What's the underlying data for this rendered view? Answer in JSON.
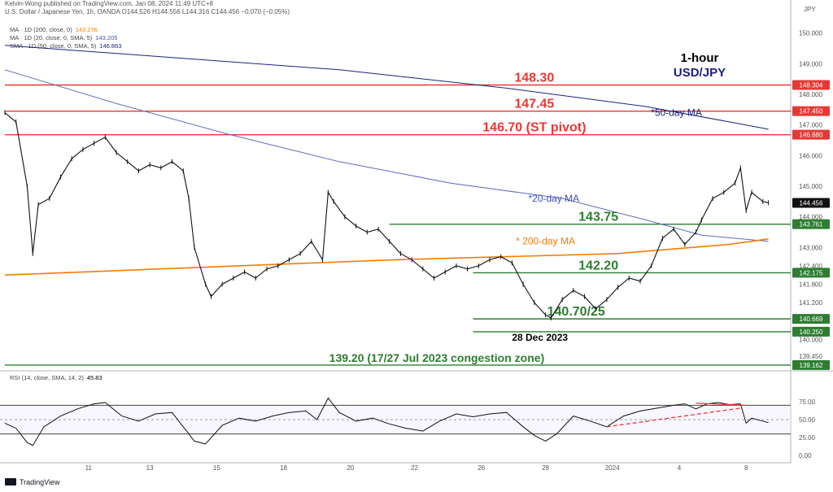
{
  "publisher": "Kelvin-Wong published on TradingView.com, Jan 08, 2024 11:49 UTC+8",
  "symbol_line": "U.S. Dollar / Japanese Yen, 1h, OANDA  O144.526 H144.556 L144.316 C144.456 −0.070 (−0.05%)",
  "indicators": [
    {
      "label": "MA · 1D (200, close, 0)",
      "value": "143.276",
      "color": "#f57c00"
    },
    {
      "label": "MA · 1D (20, close, 0, SMA, 5)",
      "value": "143.205",
      "color": "#3f51b5"
    },
    {
      "label": "SMA · 1D (50, close, 0, SMA, 5)",
      "value": "146.863",
      "color": "#1a237e"
    }
  ],
  "rsi_label": "RSI (14, close, SMA, 14, 2)",
  "rsi_value": "45.83",
  "brand": "TradingView",
  "chart_data": {
    "type": "line",
    "title": "1-hour",
    "subtitle": "USD/JPY",
    "currency": "JPY",
    "price_range": [
      139.0,
      150.6
    ],
    "price_ticks": [
      "150.000",
      "149.000",
      "148.000",
      "147.000",
      "146.000",
      "145.000",
      "144.000",
      "143.000",
      "142.400",
      "141.800",
      "141.200",
      "140.600",
      "140.000",
      "139.450"
    ],
    "x_ticks": [
      "11",
      "13",
      "15",
      "18",
      "20",
      "22",
      "26",
      "28",
      "2024",
      "4",
      "8"
    ],
    "x_tick_idx": [
      30,
      52,
      76,
      100,
      124,
      147,
      171,
      194,
      218,
      242,
      266
    ],
    "candles": [
      {
        "i": 0,
        "c": 147.4
      },
      {
        "i": 4,
        "c": 147.1
      },
      {
        "i": 8,
        "c": 145.0
      },
      {
        "i": 10,
        "c": 142.8
      },
      {
        "i": 12,
        "c": 144.4
      },
      {
        "i": 16,
        "c": 144.6
      },
      {
        "i": 20,
        "c": 145.3
      },
      {
        "i": 24,
        "c": 145.9
      },
      {
        "i": 28,
        "c": 146.2
      },
      {
        "i": 32,
        "c": 146.4
      },
      {
        "i": 36,
        "c": 146.6
      },
      {
        "i": 40,
        "c": 146.1
      },
      {
        "i": 44,
        "c": 145.8
      },
      {
        "i": 48,
        "c": 145.5
      },
      {
        "i": 52,
        "c": 145.7
      },
      {
        "i": 56,
        "c": 145.6
      },
      {
        "i": 60,
        "c": 145.8
      },
      {
        "i": 64,
        "c": 145.5
      },
      {
        "i": 66,
        "c": 144.6
      },
      {
        "i": 68,
        "c": 143.0
      },
      {
        "i": 72,
        "c": 141.8
      },
      {
        "i": 74,
        "c": 141.4
      },
      {
        "i": 78,
        "c": 141.8
      },
      {
        "i": 82,
        "c": 142.0
      },
      {
        "i": 86,
        "c": 142.2
      },
      {
        "i": 90,
        "c": 142.0
      },
      {
        "i": 94,
        "c": 142.3
      },
      {
        "i": 98,
        "c": 142.4
      },
      {
        "i": 102,
        "c": 142.6
      },
      {
        "i": 106,
        "c": 142.8
      },
      {
        "i": 110,
        "c": 143.2
      },
      {
        "i": 114,
        "c": 142.6
      },
      {
        "i": 116,
        "c": 144.8
      },
      {
        "i": 118,
        "c": 144.5
      },
      {
        "i": 122,
        "c": 144.0
      },
      {
        "i": 126,
        "c": 143.7
      },
      {
        "i": 130,
        "c": 143.5
      },
      {
        "i": 134,
        "c": 143.6
      },
      {
        "i": 138,
        "c": 143.2
      },
      {
        "i": 142,
        "c": 142.8
      },
      {
        "i": 146,
        "c": 142.6
      },
      {
        "i": 150,
        "c": 142.3
      },
      {
        "i": 154,
        "c": 142.0
      },
      {
        "i": 158,
        "c": 142.2
      },
      {
        "i": 162,
        "c": 142.4
      },
      {
        "i": 166,
        "c": 142.3
      },
      {
        "i": 170,
        "c": 142.4
      },
      {
        "i": 174,
        "c": 142.6
      },
      {
        "i": 178,
        "c": 142.7
      },
      {
        "i": 182,
        "c": 142.5
      },
      {
        "i": 186,
        "c": 141.8
      },
      {
        "i": 190,
        "c": 141.2
      },
      {
        "i": 194,
        "c": 140.8
      },
      {
        "i": 196,
        "c": 140.7
      },
      {
        "i": 200,
        "c": 141.3
      },
      {
        "i": 204,
        "c": 141.6
      },
      {
        "i": 208,
        "c": 141.4
      },
      {
        "i": 212,
        "c": 141.0
      },
      {
        "i": 216,
        "c": 141.3
      },
      {
        "i": 220,
        "c": 141.7
      },
      {
        "i": 224,
        "c": 142.0
      },
      {
        "i": 228,
        "c": 141.9
      },
      {
        "i": 232,
        "c": 142.4
      },
      {
        "i": 236,
        "c": 143.3
      },
      {
        "i": 240,
        "c": 143.6
      },
      {
        "i": 244,
        "c": 143.1
      },
      {
        "i": 248,
        "c": 143.5
      },
      {
        "i": 250,
        "c": 143.9
      },
      {
        "i": 254,
        "c": 144.6
      },
      {
        "i": 258,
        "c": 144.8
      },
      {
        "i": 262,
        "c": 145.1
      },
      {
        "i": 264,
        "c": 145.6
      },
      {
        "i": 266,
        "c": 144.2
      },
      {
        "i": 268,
        "c": 144.8
      },
      {
        "i": 272,
        "c": 144.5
      },
      {
        "i": 274,
        "c": 144.46
      }
    ],
    "ma50": [
      {
        "i": 0,
        "v": 149.6
      },
      {
        "i": 60,
        "v": 149.2
      },
      {
        "i": 120,
        "v": 148.8
      },
      {
        "i": 180,
        "v": 148.2
      },
      {
        "i": 230,
        "v": 147.6
      },
      {
        "i": 260,
        "v": 147.1
      },
      {
        "i": 274,
        "v": 146.86
      }
    ],
    "ma20": [
      {
        "i": 0,
        "v": 148.8
      },
      {
        "i": 40,
        "v": 147.7
      },
      {
        "i": 80,
        "v": 146.7
      },
      {
        "i": 120,
        "v": 145.8
      },
      {
        "i": 160,
        "v": 145.1
      },
      {
        "i": 200,
        "v": 144.6
      },
      {
        "i": 230,
        "v": 143.9
      },
      {
        "i": 250,
        "v": 143.4
      },
      {
        "i": 274,
        "v": 143.2
      }
    ],
    "ma200": [
      {
        "i": 0,
        "v": 142.1
      },
      {
        "i": 140,
        "v": 142.6
      },
      {
        "i": 220,
        "v": 142.8
      },
      {
        "i": 260,
        "v": 143.1
      },
      {
        "i": 274,
        "v": 143.28
      }
    ],
    "levels": [
      {
        "label": "148.30",
        "price": 148.304,
        "tag": "148.304",
        "color": "#e53935",
        "i_from": 0,
        "i_to": 282,
        "text_i": 190,
        "type": "resistance"
      },
      {
        "label": "147.45",
        "price": 147.45,
        "tag": "147.450",
        "color": "#e53935",
        "i_from": 0,
        "i_to": 282,
        "text_i": 190,
        "type": "resistance"
      },
      {
        "label": "146.70 (ST pivot)",
        "price": 146.68,
        "tag": "146.680",
        "color": "#e53935",
        "i_from": 0,
        "i_to": 282,
        "text_i": 190,
        "type": "pivot"
      },
      {
        "label": "143.75",
        "price": 143.761,
        "tag": "143.761",
        "color": "#2e7d32",
        "i_from": 138,
        "i_to": 282,
        "text_i": 213,
        "type": "support"
      },
      {
        "label": "142.20",
        "price": 142.175,
        "tag": "142.175",
        "color": "#2e7d32",
        "i_from": 168,
        "i_to": 282,
        "text_i": 213,
        "type": "support"
      },
      {
        "label": "140.70/25",
        "price": 140.669,
        "tag": "140.669",
        "color": "#2e7d32",
        "i_from": 168,
        "i_to": 282,
        "text_i": 205,
        "type": "support"
      },
      {
        "label": "",
        "price": 140.25,
        "tag": "140.250",
        "color": "#2e7d32",
        "i_from": 168,
        "i_to": 282,
        "text_i": 0,
        "type": "support"
      },
      {
        "label": "139.20 (17/27 Jul 2023 congestion zone)",
        "price": 139.162,
        "tag": "139.162",
        "color": "#2e7d32",
        "i_from": 0,
        "i_to": 282,
        "text_i": 155,
        "type": "support"
      }
    ],
    "last_price_tag": "144.456",
    "annotations": [
      {
        "text": "*50-day MA",
        "color": "#1a237e",
        "i": 241,
        "price": 147.3
      },
      {
        "text": "*20-day MA",
        "color": "#3f51b5",
        "i": 197,
        "price": 144.5
      },
      {
        "text": "* 200-day MA",
        "color": "#f57c00",
        "i": 194,
        "price": 143.1
      },
      {
        "text": "28 Dec 2023",
        "color": "#000000",
        "i": 192,
        "price": 139.95
      }
    ],
    "rsi": {
      "range": [
        0,
        100
      ],
      "ticks": [
        "75.00",
        "50.00",
        "25.00",
        "0.00"
      ],
      "bands": [
        70,
        50,
        30
      ],
      "values": [
        {
          "i": 0,
          "v": 45
        },
        {
          "i": 4,
          "v": 38
        },
        {
          "i": 8,
          "v": 18
        },
        {
          "i": 10,
          "v": 14
        },
        {
          "i": 14,
          "v": 40
        },
        {
          "i": 20,
          "v": 55
        },
        {
          "i": 26,
          "v": 65
        },
        {
          "i": 32,
          "v": 72
        },
        {
          "i": 36,
          "v": 74
        },
        {
          "i": 42,
          "v": 55
        },
        {
          "i": 48,
          "v": 48
        },
        {
          "i": 54,
          "v": 58
        },
        {
          "i": 60,
          "v": 60
        },
        {
          "i": 66,
          "v": 30
        },
        {
          "i": 68,
          "v": 20
        },
        {
          "i": 72,
          "v": 16
        },
        {
          "i": 78,
          "v": 42
        },
        {
          "i": 84,
          "v": 52
        },
        {
          "i": 90,
          "v": 48
        },
        {
          "i": 96,
          "v": 55
        },
        {
          "i": 102,
          "v": 60
        },
        {
          "i": 108,
          "v": 62
        },
        {
          "i": 112,
          "v": 50
        },
        {
          "i": 116,
          "v": 80
        },
        {
          "i": 120,
          "v": 60
        },
        {
          "i": 126,
          "v": 48
        },
        {
          "i": 132,
          "v": 52
        },
        {
          "i": 138,
          "v": 44
        },
        {
          "i": 144,
          "v": 38
        },
        {
          "i": 150,
          "v": 34
        },
        {
          "i": 156,
          "v": 48
        },
        {
          "i": 162,
          "v": 58
        },
        {
          "i": 168,
          "v": 54
        },
        {
          "i": 174,
          "v": 58
        },
        {
          "i": 180,
          "v": 60
        },
        {
          "i": 186,
          "v": 40
        },
        {
          "i": 190,
          "v": 28
        },
        {
          "i": 194,
          "v": 20
        },
        {
          "i": 198,
          "v": 30
        },
        {
          "i": 204,
          "v": 55
        },
        {
          "i": 210,
          "v": 48
        },
        {
          "i": 216,
          "v": 40
        },
        {
          "i": 222,
          "v": 55
        },
        {
          "i": 228,
          "v": 62
        },
        {
          "i": 234,
          "v": 66
        },
        {
          "i": 240,
          "v": 70
        },
        {
          "i": 244,
          "v": 72
        },
        {
          "i": 248,
          "v": 65
        },
        {
          "i": 252,
          "v": 72
        },
        {
          "i": 256,
          "v": 74
        },
        {
          "i": 260,
          "v": 71
        },
        {
          "i": 264,
          "v": 72
        },
        {
          "i": 266,
          "v": 45
        },
        {
          "i": 268,
          "v": 52
        },
        {
          "i": 274,
          "v": 45.83
        }
      ],
      "trendlines": [
        {
          "from": {
            "i": 216,
            "v": 40
          },
          "to": {
            "i": 264,
            "v": 66
          },
          "dashed": true,
          "color": "#e53935"
        },
        {
          "from": {
            "i": 248,
            "v": 73
          },
          "to": {
            "i": 266,
            "v": 70
          },
          "dashed": false,
          "color": "#e53935"
        }
      ]
    }
  }
}
